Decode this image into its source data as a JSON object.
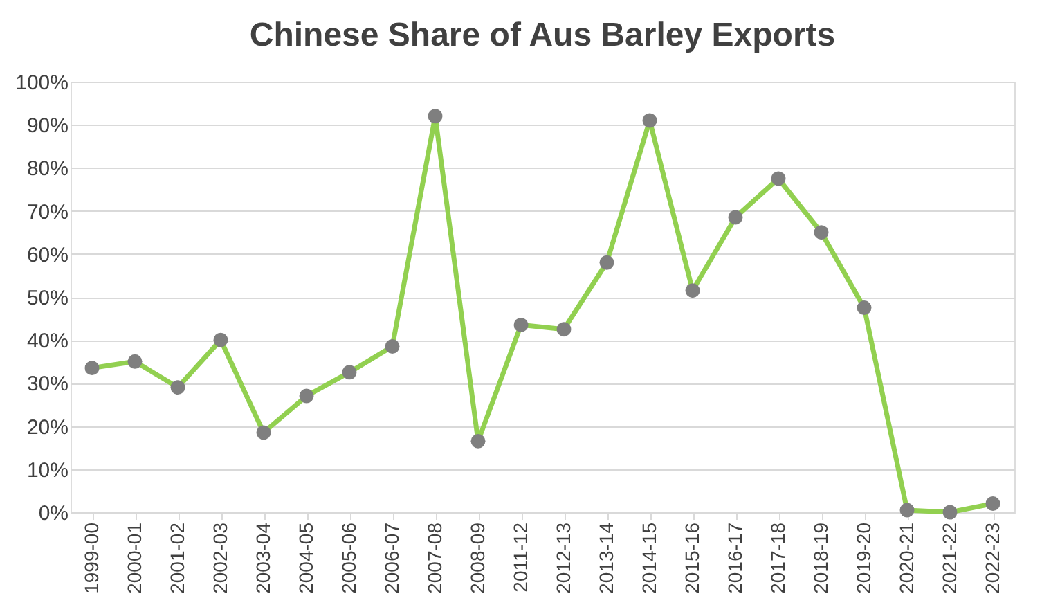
{
  "chart_data": {
    "type": "line",
    "title": "Chinese Share of Aus Barley Exports",
    "categories": [
      "1999-00",
      "2000-01",
      "2001-02",
      "2002-03",
      "2003-04",
      "2004-05",
      "2005-06",
      "2006-07",
      "2007-08",
      "2008-09",
      "2011-12",
      "2012-13",
      "2013-14",
      "2014-15",
      "2015-16",
      "2016-17",
      "2017-18",
      "2018-19",
      "2019-20",
      "2020-21",
      "2021-22",
      "2022-23"
    ],
    "series": [
      {
        "color": "#92d050",
        "values": [
          33.5,
          35,
          29,
          40,
          18.5,
          27,
          32.5,
          38.5,
          92,
          16.5,
          43.5,
          42.5,
          58,
          91,
          51.5,
          68.5,
          77.5,
          65,
          47.5,
          0.5,
          0,
          2
        ]
      }
    ],
    "ylim": [
      0,
      100
    ],
    "yticks": [
      {
        "value": 0,
        "label": "0%"
      },
      {
        "value": 10,
        "label": "10%"
      },
      {
        "value": 20,
        "label": "20%"
      },
      {
        "value": 30,
        "label": "30%"
      },
      {
        "value": 40,
        "label": "40%"
      },
      {
        "value": 50,
        "label": "50%"
      },
      {
        "value": 60,
        "label": "60%"
      },
      {
        "value": 70,
        "label": "70%"
      },
      {
        "value": 80,
        "label": "80%"
      },
      {
        "value": 90,
        "label": "90%"
      },
      {
        "value": 100,
        "label": "100%"
      }
    ],
    "grid": "y",
    "marker": "circle",
    "line_style": "solid",
    "legend": false
  }
}
